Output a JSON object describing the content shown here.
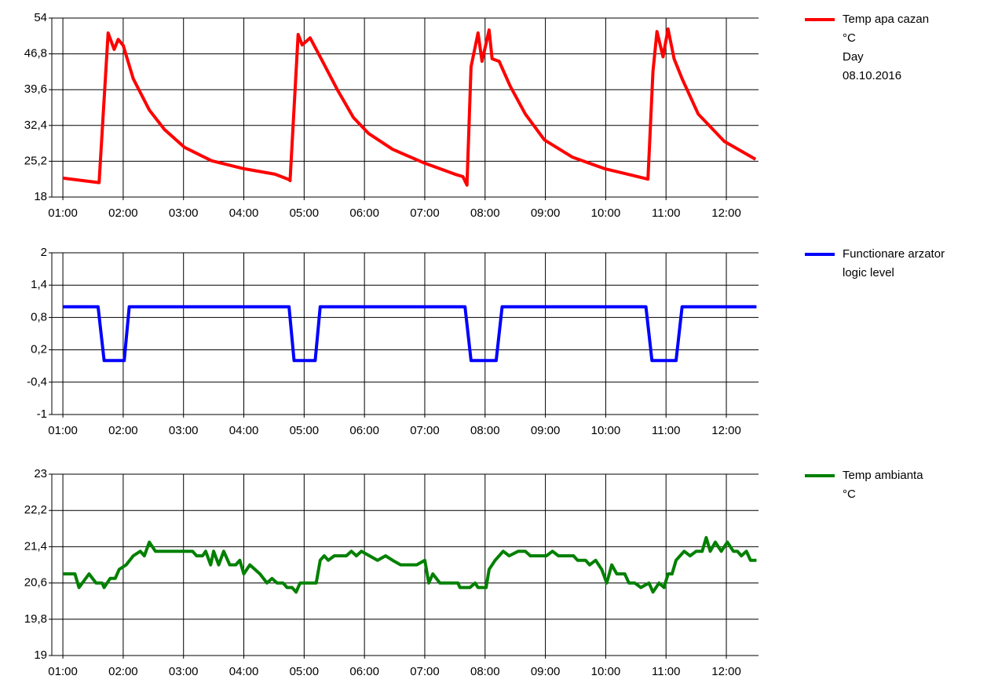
{
  "chart_data": [
    {
      "type": "line",
      "x": [
        "01:00",
        "01:36",
        "01:45",
        "01:51",
        "01:55",
        "02:00",
        "02:10",
        "02:26",
        "02:41",
        "03:01",
        "03:28",
        "04:00",
        "04:31",
        "04:45",
        "04:46",
        "04:54",
        "04:58",
        "05:06",
        "05:17",
        "05:33",
        "05:49",
        "06:04",
        "06:28",
        "07:00",
        "07:30",
        "07:38",
        "07:42",
        "07:46",
        "07:53",
        "07:57",
        "08:04",
        "08:07",
        "08:14",
        "08:25",
        "08:40",
        "08:59",
        "09:27",
        "09:59",
        "10:22",
        "10:42",
        "10:47",
        "10:51",
        "10:57",
        "11:02",
        "11:08",
        "11:16",
        "11:32",
        "11:58",
        "12:29"
      ],
      "series": [
        {
          "name": "Temp apa cazan",
          "color": "#ff0000",
          "values": [
            21.8,
            20.9,
            51,
            47.7,
            49.7,
            48.5,
            41.8,
            35.5,
            31.6,
            28,
            25.3,
            23.7,
            22.6,
            21.5,
            21.3,
            50.7,
            48.6,
            50,
            45.8,
            39.6,
            34,
            30.8,
            27.6,
            24.8,
            22.6,
            22.1,
            20.4,
            44.2,
            51,
            45.3,
            51.6,
            45.8,
            45.3,
            40.3,
            34.7,
            29.5,
            26,
            23.7,
            22.6,
            21.6,
            43.3,
            51.3,
            46.2,
            51.8,
            45.8,
            41.8,
            34.7,
            29.2,
            25.6
          ]
        }
      ],
      "legend_notes": [
        "°C",
        "Day",
        "08.10.2016"
      ],
      "xlim": [
        "00:49",
        "12:32"
      ],
      "xticks": [
        "01:00",
        "02:00",
        "03:00",
        "04:00",
        "05:00",
        "06:00",
        "07:00",
        "08:00",
        "09:00",
        "10:00",
        "11:00",
        "12:00"
      ],
      "ylim": [
        18,
        54
      ],
      "yticks": [
        18,
        {
          "value": 25.2,
          "label": "25,2"
        },
        {
          "value": 32.4,
          "label": "32,4"
        },
        {
          "value": 39.6,
          "label": "39,6"
        },
        {
          "value": 46.8,
          "label": "46,8"
        },
        54
      ],
      "grid": true,
      "legend": "right"
    },
    {
      "type": "line",
      "x": [
        "01:00",
        "01:35",
        "01:41",
        "02:01",
        "02:06",
        "04:45",
        "04:50",
        "05:11",
        "05:16",
        "07:40",
        "07:46",
        "08:11",
        "08:17",
        "10:40",
        "10:46",
        "11:10",
        "11:16",
        "12:30"
      ],
      "series": [
        {
          "name": "Functionare arzator",
          "color": "#0000ff",
          "values": [
            1,
            1,
            0,
            0,
            1,
            1,
            0,
            0,
            1,
            1,
            0,
            0,
            1,
            1,
            0,
            0,
            1,
            1
          ]
        }
      ],
      "legend_notes": [
        "logic level"
      ],
      "xlim": [
        "00:49",
        "12:32"
      ],
      "xticks": [
        "01:00",
        "02:00",
        "03:00",
        "04:00",
        "05:00",
        "06:00",
        "07:00",
        "08:00",
        "09:00",
        "10:00",
        "11:00",
        "12:00"
      ],
      "ylim": [
        -1,
        2
      ],
      "yticks": [
        -1,
        {
          "value": -0.4,
          "label": "-0,4"
        },
        {
          "value": 0.2,
          "label": "0,2"
        },
        {
          "value": 0.8,
          "label": "0,8"
        },
        {
          "value": 1.4,
          "label": "1,4"
        },
        2
      ],
      "grid": true,
      "legend": "right"
    },
    {
      "type": "line",
      "x": [
        "01:00",
        "01:12",
        "01:16",
        "01:26",
        "01:33",
        "01:39",
        "01:41",
        "01:47",
        "01:52",
        "01:56",
        "02:03",
        "02:10",
        "02:17",
        "02:21",
        "02:26",
        "02:32",
        "03:09",
        "03:13",
        "03:19",
        "03:22",
        "03:27",
        "03:30",
        "03:35",
        "03:40",
        "03:46",
        "03:52",
        "03:56",
        "04:00",
        "04:06",
        "04:16",
        "04:23",
        "04:28",
        "04:33",
        "04:39",
        "04:43",
        "04:48",
        "04:52",
        "04:56",
        "05:12",
        "05:16",
        "05:20",
        "05:24",
        "05:30",
        "05:42",
        "05:47",
        "05:52",
        "05:57",
        "06:05",
        "06:13",
        "06:21",
        "06:28",
        "06:36",
        "06:52",
        "07:00",
        "07:04",
        "07:08",
        "07:15",
        "07:33",
        "07:35",
        "07:45",
        "07:50",
        "07:53",
        "08:01",
        "08:04",
        "08:10",
        "08:18",
        "08:24",
        "08:33",
        "08:40",
        "08:45",
        "09:01",
        "09:07",
        "09:13",
        "09:28",
        "09:32",
        "09:40",
        "09:44",
        "09:50",
        "09:56",
        "10:01",
        "10:06",
        "10:11",
        "10:19",
        "10:23",
        "10:29",
        "10:35",
        "10:43",
        "10:47",
        "10:53",
        "10:58",
        "11:02",
        "11:06",
        "11:10",
        "11:18",
        "11:24",
        "11:30",
        "11:36",
        "11:40",
        "11:44",
        "11:49",
        "11:55",
        "12:01",
        "12:07",
        "12:11",
        "12:15",
        "12:20",
        "12:24",
        "12:30"
      ],
      "series": [
        {
          "name": "Temp ambianta",
          "color": "#008000",
          "values": [
            20.8,
            20.8,
            20.5,
            20.8,
            20.6,
            20.6,
            20.5,
            20.7,
            20.7,
            20.9,
            21.0,
            21.2,
            21.3,
            21.2,
            21.5,
            21.3,
            21.3,
            21.2,
            21.2,
            21.3,
            21.0,
            21.3,
            21.0,
            21.3,
            21.0,
            21.0,
            21.1,
            20.8,
            21.0,
            20.8,
            20.6,
            20.7,
            20.6,
            20.6,
            20.5,
            20.5,
            20.4,
            20.6,
            20.6,
            21.1,
            21.2,
            21.1,
            21.2,
            21.2,
            21.3,
            21.2,
            21.3,
            21.2,
            21.1,
            21.2,
            21.1,
            21.0,
            21.0,
            21.1,
            20.6,
            20.8,
            20.6,
            20.6,
            20.5,
            20.5,
            20.6,
            20.5,
            20.5,
            20.9,
            21.1,
            21.3,
            21.2,
            21.3,
            21.3,
            21.2,
            21.2,
            21.3,
            21.2,
            21.2,
            21.1,
            21.1,
            21.0,
            21.1,
            20.9,
            20.6,
            21.0,
            20.8,
            20.8,
            20.6,
            20.6,
            20.5,
            20.6,
            20.4,
            20.6,
            20.5,
            20.8,
            20.8,
            21.1,
            21.3,
            21.2,
            21.3,
            21.3,
            21.6,
            21.3,
            21.5,
            21.3,
            21.5,
            21.3,
            21.3,
            21.2,
            21.3,
            21.1,
            21.1
          ]
        }
      ],
      "legend_notes": [
        "°C"
      ],
      "xlim": [
        "00:49",
        "12:32"
      ],
      "xticks": [
        "01:00",
        "02:00",
        "03:00",
        "04:00",
        "05:00",
        "06:00",
        "07:00",
        "08:00",
        "09:00",
        "10:00",
        "11:00",
        "12:00"
      ],
      "ylim": [
        19,
        23
      ],
      "yticks": [
        19,
        {
          "value": 19.8,
          "label": "19,8"
        },
        {
          "value": 20.6,
          "label": "20,6"
        },
        {
          "value": 21.4,
          "label": "21,4"
        },
        {
          "value": 22.2,
          "label": "22,2"
        },
        23
      ],
      "grid": true,
      "legend": "right"
    }
  ]
}
